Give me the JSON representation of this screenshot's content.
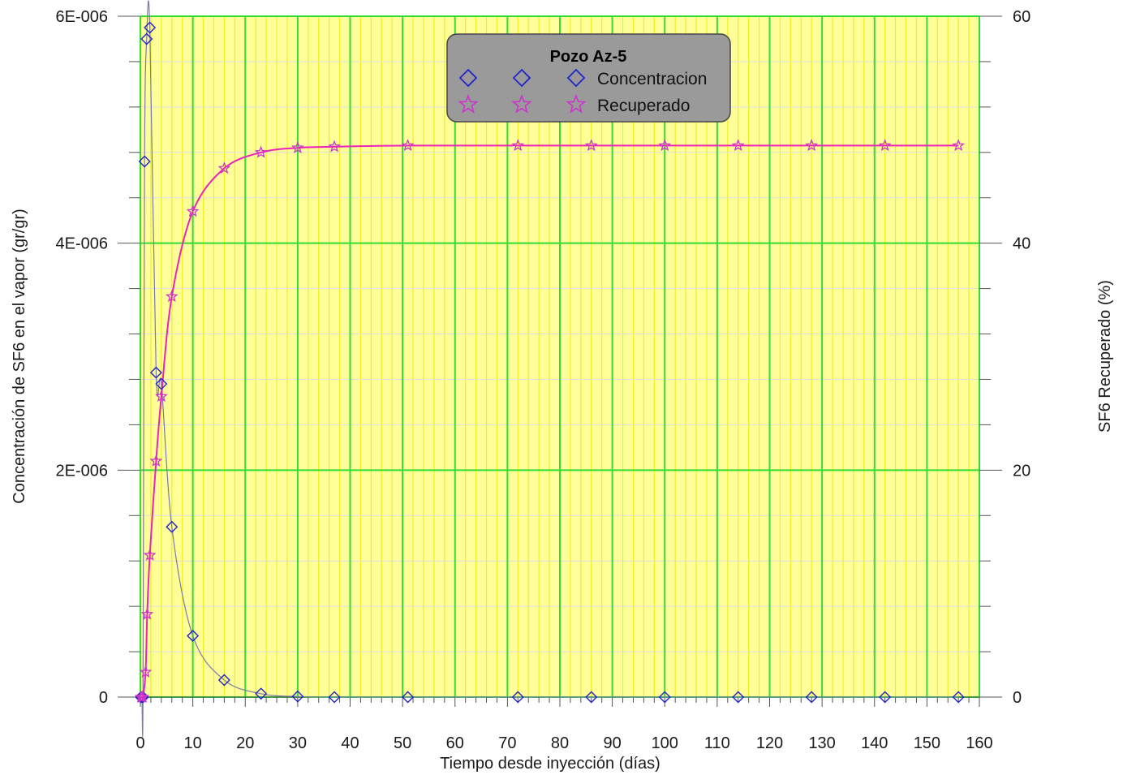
{
  "chart_data": {
    "type": "scatter",
    "title": "",
    "xlabel": "Tiempo desde inyección (días)",
    "ylabel_left": "Concentración de SF6 en el vapor (gr/gr)",
    "ylabel_right": "SF6 Recuperado (%)",
    "xlim": [
      0,
      160
    ],
    "ylim_left": [
      0,
      6e-06
    ],
    "ylim_right": [
      0,
      60
    ],
    "x_ticks": [
      "0",
      "10",
      "20",
      "30",
      "40",
      "50",
      "60",
      "70",
      "80",
      "90",
      "100",
      "110",
      "120",
      "130",
      "140",
      "150",
      "160"
    ],
    "y_left_ticks": [
      "0",
      "2E-006",
      "4E-006",
      "6E-006"
    ],
    "y_right_ticks": [
      "0",
      "20",
      "40",
      "60"
    ],
    "grid": true,
    "legend": {
      "position": "top-center",
      "title": "Pozo Az-5",
      "entries": [
        "Concentracion",
        "Recuperado"
      ]
    },
    "series": [
      {
        "name": "Concentracion",
        "axis": "left",
        "marker": "diamond",
        "color": "#2222cc",
        "x": [
          0.1,
          0.3,
          0.5,
          0.8,
          1.2,
          1.8,
          3.0,
          4.0,
          6.0,
          10.0,
          16.0,
          23.0,
          30.0,
          37.0,
          51.0,
          72.0,
          86.0,
          100.0,
          114.0,
          128.0,
          142.0,
          156.0
        ],
        "y": [
          0.0,
          0.0,
          0.0,
          4.72e-06,
          5.8e-06,
          5.9e-06,
          2.86e-06,
          2.76e-06,
          1.5e-06,
          5.4e-07,
          1.5e-07,
          3e-08,
          5e-09,
          0.0,
          0.0,
          0.0,
          0.0,
          0.0,
          0.0,
          0.0,
          0.0,
          0.0
        ]
      },
      {
        "name": "Recuperado",
        "axis": "right",
        "marker": "star",
        "color": "#cc33cc",
        "x": [
          0.1,
          0.3,
          0.5,
          1.0,
          1.3,
          1.8,
          3.0,
          4.0,
          6.0,
          10.0,
          16.0,
          23.0,
          30.0,
          37.0,
          51.0,
          72.0,
          86.0,
          100.0,
          114.0,
          128.0,
          142.0,
          156.0
        ],
        "y": [
          0.0,
          0.0,
          0.0,
          2.2,
          7.3,
          12.5,
          20.8,
          26.5,
          35.3,
          42.8,
          46.6,
          48.0,
          48.4,
          48.5,
          48.6,
          48.6,
          48.6,
          48.6,
          48.6,
          48.6,
          48.6,
          48.6
        ]
      }
    ]
  },
  "colors": {
    "plot_background": "#ffff99",
    "major_grid": "#33dd33",
    "minor_grid_x": "#eeee22",
    "minor_grid_y": "#dddddd",
    "concentration_line": "#7a7aaa",
    "recovered_line": "#ee22bb",
    "legend_background": "#9a9a9a"
  }
}
